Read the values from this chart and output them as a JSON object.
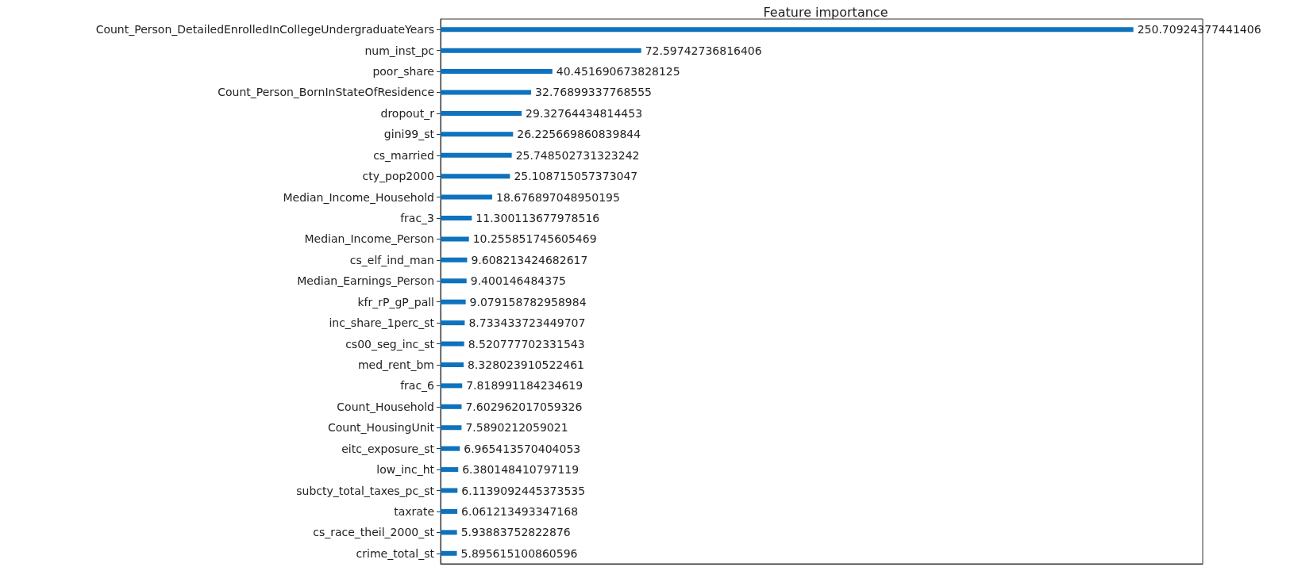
{
  "chart_data": {
    "type": "bar",
    "orientation": "horizontal",
    "title": "Feature importance",
    "categories": [
      "Count_Person_DetailedEnrolledInCollegeUndergraduateYears",
      "num_inst_pc",
      "poor_share",
      "Count_Person_BornInStateOfResidence",
      "dropout_r",
      "gini99_st",
      "cs_married",
      "cty_pop2000",
      "Median_Income_Household",
      "frac_3",
      "Median_Income_Person",
      "cs_elf_ind_man",
      "Median_Earnings_Person",
      "kfr_rP_gP_pall",
      "inc_share_1perc_st",
      "cs00_seg_inc_st",
      "med_rent_bm",
      "frac_6",
      "Count_Household",
      "Count_HousingUnit",
      "eitc_exposure_st",
      "low_inc_ht",
      "subcty_total_taxes_pc_st",
      "taxrate",
      "cs_race_theil_2000_st",
      "crime_total_st"
    ],
    "values": [
      250.70924377441406,
      72.59742736816406,
      40.451690673828125,
      32.76899337768555,
      29.32764434814453,
      26.225669860839844,
      25.748502731323242,
      25.108715057373047,
      18.676897048950195,
      11.300113677978516,
      10.255851745605469,
      9.608213424682617,
      9.400146484375,
      9.079158782958984,
      8.733433723449707,
      8.520777702331543,
      8.328023910522461,
      7.818991184234619,
      7.602962017059326,
      7.5890212059021,
      6.965413570404053,
      6.380148410797119,
      6.1139092445373535,
      6.061213493347168,
      5.93883752822876,
      5.895615100860596
    ],
    "color": "#0e72bd",
    "xlim": [
      0,
      275.8
    ],
    "tick_labels": "y",
    "data_labels": true,
    "grid": false
  }
}
